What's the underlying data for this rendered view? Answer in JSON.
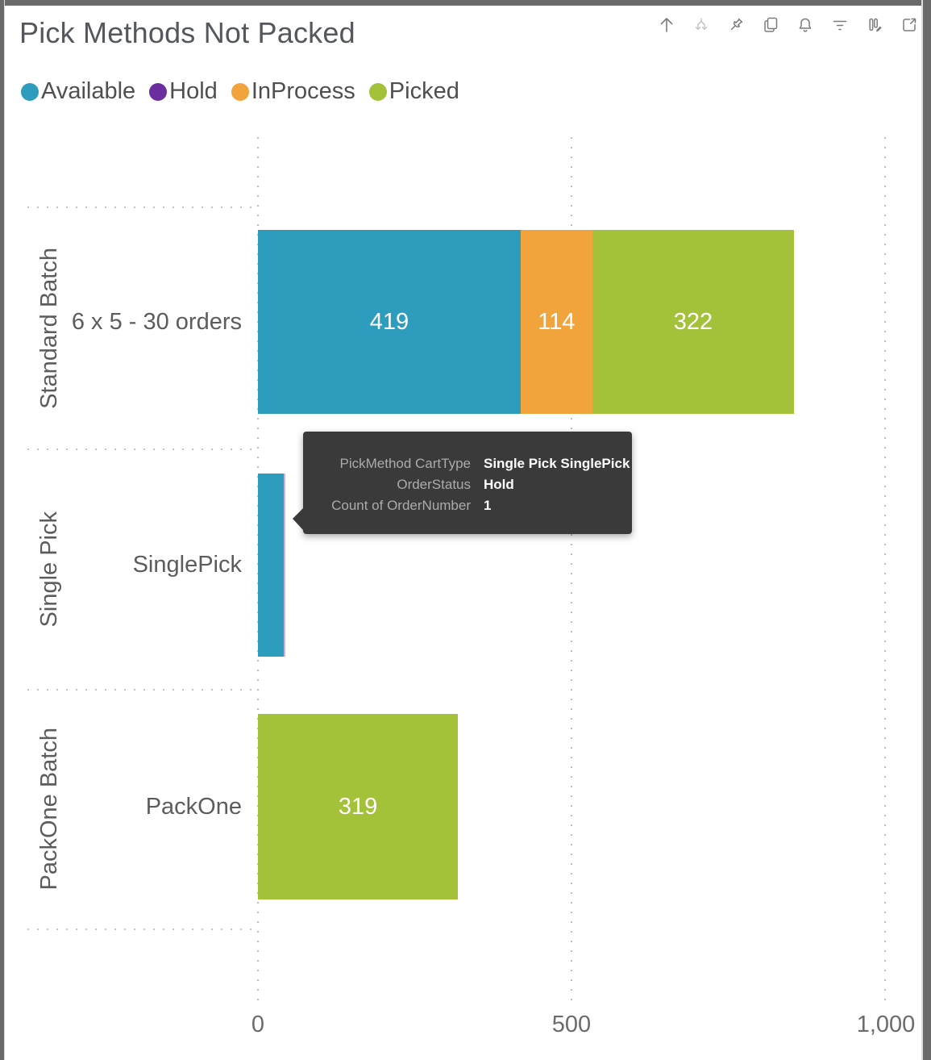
{
  "window": {
    "frame_color": "#6a6a6a",
    "background": "#ffffff"
  },
  "header": {
    "title": "Pick Methods Not Packed"
  },
  "toolbar": {
    "icons": [
      "drill-up",
      "drill-down",
      "pin",
      "copy",
      "alert",
      "filter",
      "personalize",
      "focus-mode"
    ]
  },
  "chart_data": {
    "type": "bar",
    "orientation": "horizontal_stacked",
    "title": "Pick Methods Not Packed",
    "legend_position": "top",
    "grid": "vertical-dotted",
    "x_axis": {
      "ticks": [
        "0",
        "500",
        "1,000"
      ],
      "tick_values": [
        0,
        500,
        1000
      ],
      "range": [
        0,
        1060
      ]
    },
    "categories": [
      {
        "group": "Standard Batch",
        "item": "6 x 5 - 30 orders"
      },
      {
        "group": "Single Pick",
        "item": "SinglePick"
      },
      {
        "group": "PackOne Batch",
        "item": "PackOne"
      }
    ],
    "series": [
      {
        "name": "Available",
        "color": "#2d9cbd",
        "values": [
          419,
          41,
          0
        ]
      },
      {
        "name": "Hold",
        "color": "#6b2e9e",
        "sliver_color": "#c9b3e5",
        "values": [
          0,
          1,
          0
        ]
      },
      {
        "name": "InProcess",
        "color": "#f1a33c",
        "values": [
          114,
          0,
          0
        ]
      },
      {
        "name": "Picked",
        "color": "#a3c139",
        "values": [
          322,
          0,
          319
        ]
      }
    ],
    "visible_bar_labels": [
      "419",
      "114",
      "322",
      "319"
    ]
  },
  "tooltip": {
    "rows": [
      {
        "label": "PickMethod CartType",
        "value": "Single Pick SinglePick"
      },
      {
        "label": "OrderStatus",
        "value": "Hold"
      },
      {
        "label": "Count of OrderNumber",
        "value": "1"
      }
    ]
  }
}
